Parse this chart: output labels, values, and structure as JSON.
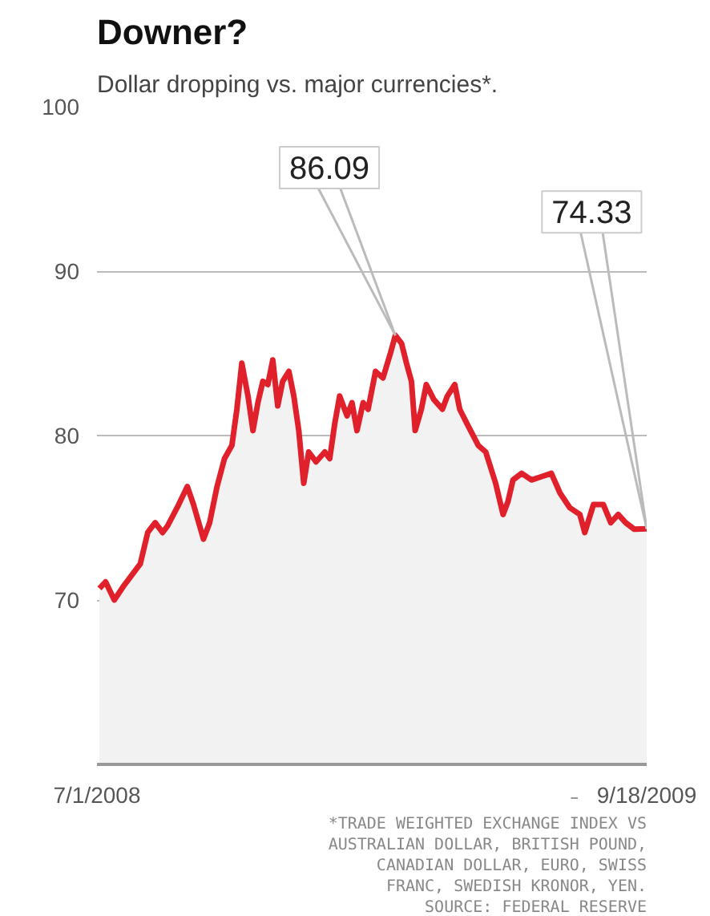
{
  "chart_data": {
    "type": "area",
    "title": "Downer?",
    "subtitle": "Dollar dropping vs. major currencies*.",
    "x": [
      "2008-07-03",
      "2008-07-08",
      "2008-07-15",
      "2008-07-23",
      "2008-08-01",
      "2008-08-05",
      "2008-08-11",
      "2008-08-17",
      "2008-08-23",
      "2008-08-27",
      "2008-09-05",
      "2008-09-12",
      "2008-09-17",
      "2008-09-25",
      "2008-09-30",
      "2008-10-06",
      "2008-10-12",
      "2008-10-18",
      "2008-10-22",
      "2008-10-26",
      "2008-10-31",
      "2008-11-04",
      "2008-11-08",
      "2008-11-12",
      "2008-11-16",
      "2008-11-20",
      "2008-11-24",
      "2008-11-28",
      "2008-12-03",
      "2008-12-07",
      "2008-12-11",
      "2008-12-15",
      "2008-12-19",
      "2008-12-25",
      "2009-01-01",
      "2009-01-05",
      "2009-01-09",
      "2009-01-13",
      "2009-01-19",
      "2009-01-23",
      "2009-01-27",
      "2009-02-01",
      "2009-02-05",
      "2009-02-11",
      "2009-02-17",
      "2009-02-23",
      "2009-02-27",
      "2009-03-04",
      "2009-03-08",
      "2009-03-12",
      "2009-03-15",
      "2009-03-20",
      "2009-03-24",
      "2009-03-30",
      "2009-04-06",
      "2009-04-10",
      "2009-04-16",
      "2009-04-20",
      "2009-04-26",
      "2009-05-05",
      "2009-05-11",
      "2009-05-19",
      "2009-05-25",
      "2009-05-29",
      "2009-06-02",
      "2009-06-09",
      "2009-06-17",
      "2009-06-25",
      "2009-07-03",
      "2009-07-10",
      "2009-07-18",
      "2009-07-26",
      "2009-07-30",
      "2009-08-06",
      "2009-08-14",
      "2009-08-20",
      "2009-08-26",
      "2009-09-01",
      "2009-09-08",
      "2009-09-18"
    ],
    "series": [
      {
        "color": "#e0202a",
        "values": [
          70.7,
          71.1,
          70.0,
          70.9,
          71.8,
          72.2,
          74.1,
          74.7,
          74.1,
          74.5,
          75.8,
          76.9,
          75.8,
          73.7,
          74.7,
          76.9,
          78.6,
          79.4,
          81.6,
          84.4,
          82.4,
          80.3,
          82.0,
          83.3,
          83.1,
          84.6,
          81.8,
          83.3,
          83.9,
          82.4,
          80.3,
          77.1,
          79.0,
          78.4,
          79.0,
          78.6,
          80.7,
          82.4,
          81.2,
          82.0,
          80.3,
          82.0,
          81.6,
          83.9,
          83.5,
          85.0,
          86.09,
          85.6,
          84.4,
          83.3,
          80.3,
          81.6,
          83.1,
          82.2,
          81.6,
          82.4,
          83.1,
          81.6,
          80.7,
          79.4,
          79.0,
          77.1,
          75.2,
          76.0,
          77.3,
          77.7,
          77.3,
          77.5,
          77.7,
          76.5,
          75.6,
          75.2,
          74.1,
          75.8,
          75.8,
          74.7,
          75.2,
          74.7,
          74.3,
          74.33
        ]
      }
    ],
    "xlim": [
      "2008-07-01",
      "2009-09-18"
    ],
    "xticks": [
      {
        "value": "2008-07-01",
        "label": "7/1/2008"
      },
      {
        "value": "2009-09-18",
        "label": "9/18/2009"
      }
    ],
    "ylim": [
      60,
      100
    ],
    "yticks": [
      70,
      80,
      90,
      100
    ],
    "grid": "y",
    "annotations": [
      {
        "text": "86.09",
        "x": "2009-02-27",
        "y": 86.09
      },
      {
        "text": "74.33",
        "x": "2009-09-18",
        "y": 74.33
      },
      "*TRADE WEIGHTED EXCHANGE INDEX VS AUSTRALIAN DOLLAR, BRITISH POUND, CANADIAN DOLLAR, EURO, SWISS FRANC, SWEDISH KRONOR, YEN.",
      "SOURCE: FEDERAL RESERVE"
    ]
  }
}
